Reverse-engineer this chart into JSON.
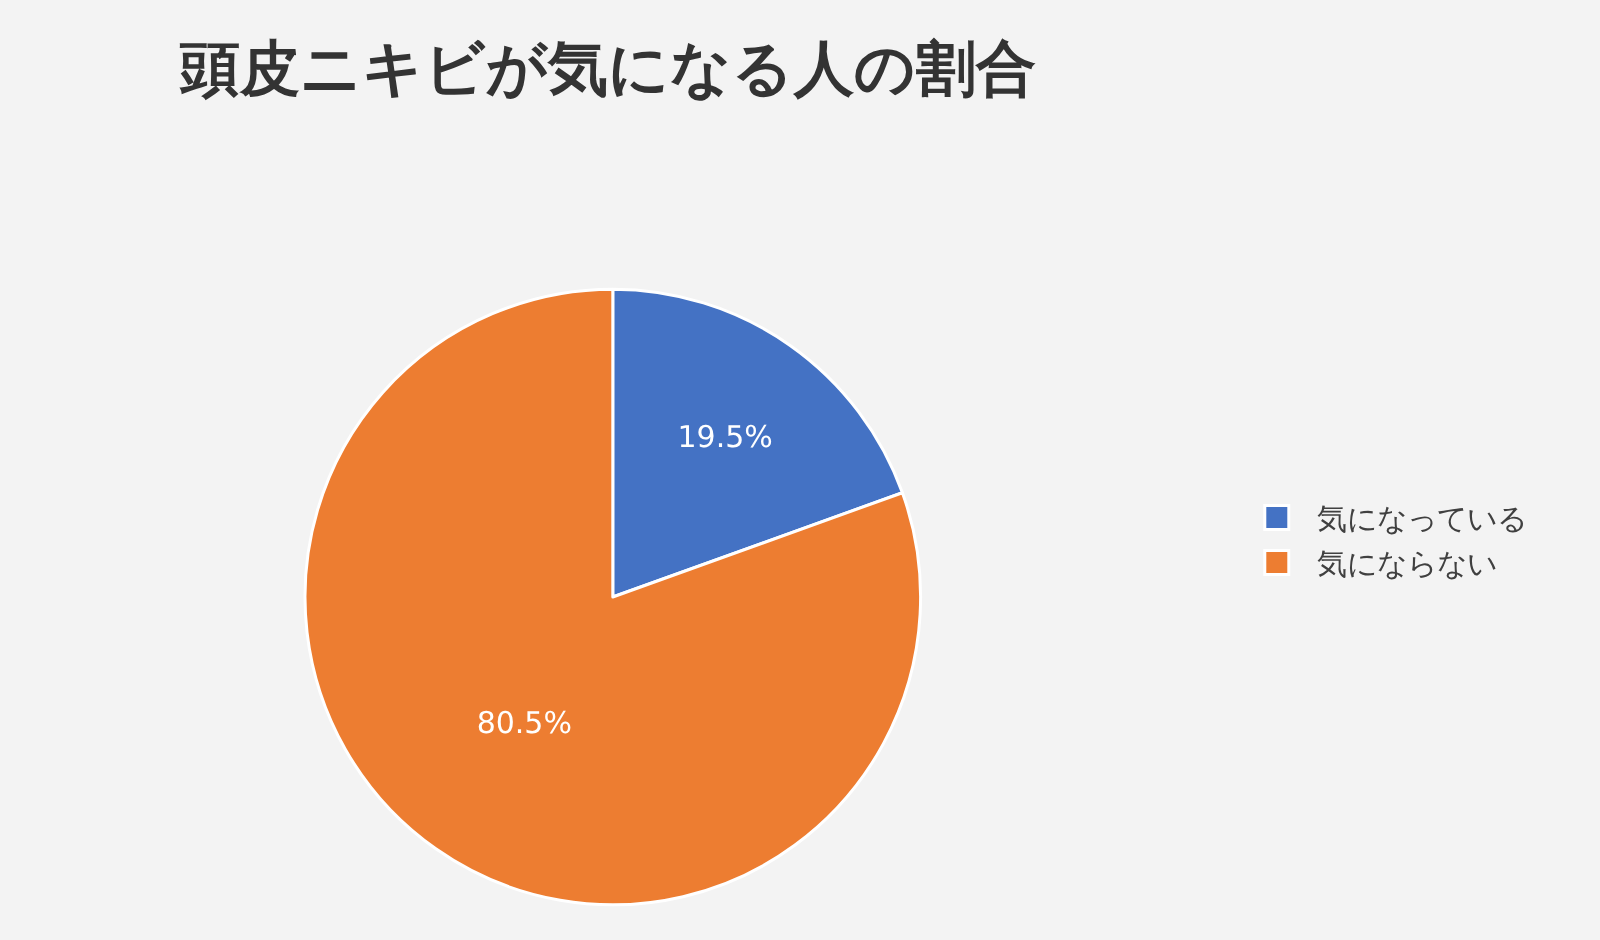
{
  "chart_data": {
    "type": "pie",
    "title": "頭皮ニキビが気になる人の割合",
    "categories": [
      "気になっている",
      "気にならない"
    ],
    "values": [
      19.5,
      80.5
    ],
    "colors": [
      "#4472c4",
      "#ed7d31"
    ],
    "value_labels": [
      "19.5%",
      "80.5%"
    ],
    "legend": "right"
  }
}
